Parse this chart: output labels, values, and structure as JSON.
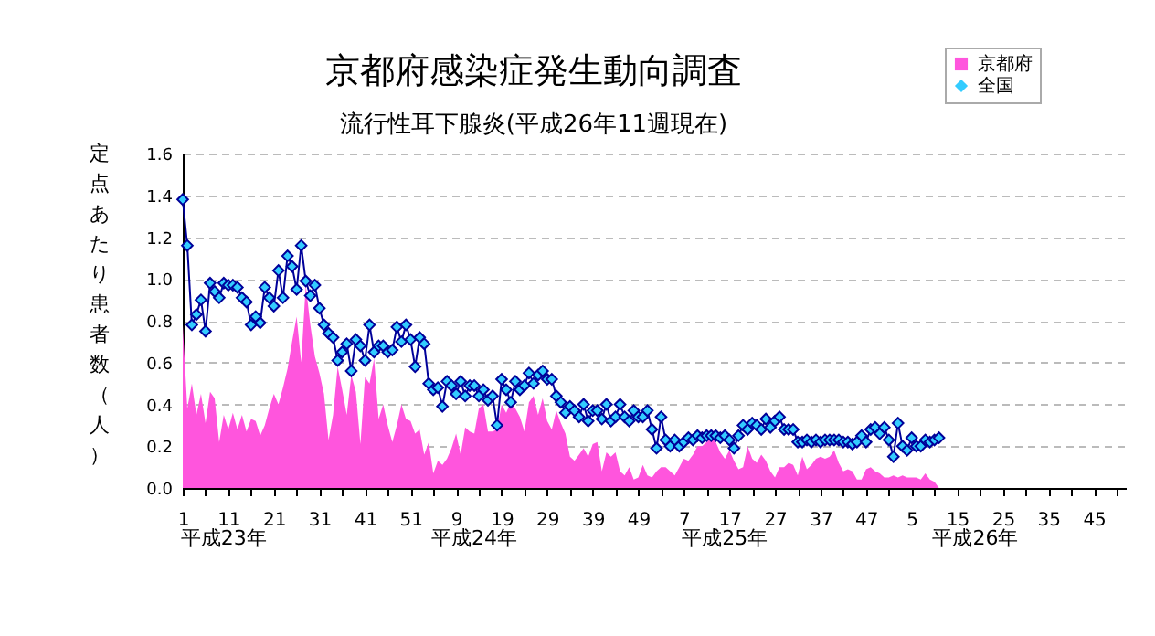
{
  "chart_data": {
    "type": "line",
    "title": "京都府感染症発生動向調査",
    "subtitle": "流行性耳下腺炎(平成26年11週現在)",
    "ylabel": "定点あたり患者数（人）",
    "annotations": [
      "平成23年",
      "平成24年",
      "平成25年",
      "平成26年"
    ],
    "categories": [
      "1",
      null,
      null,
      null,
      null,
      null,
      null,
      null,
      null,
      null,
      "11",
      null,
      null,
      null,
      null,
      null,
      null,
      null,
      null,
      null,
      "21",
      null,
      null,
      null,
      null,
      null,
      null,
      null,
      null,
      null,
      "31",
      null,
      null,
      null,
      null,
      null,
      null,
      null,
      null,
      null,
      "41",
      null,
      null,
      null,
      null,
      null,
      null,
      null,
      null,
      null,
      "51",
      null,
      null,
      null,
      null,
      null,
      null,
      null,
      null,
      null,
      "9",
      null,
      null,
      null,
      null,
      null,
      null,
      null,
      null,
      null,
      "19",
      null,
      null,
      null,
      null,
      null,
      null,
      null,
      null,
      null,
      "29",
      null,
      null,
      null,
      null,
      null,
      null,
      null,
      null,
      null,
      "39",
      null,
      null,
      null,
      null,
      null,
      null,
      null,
      null,
      null,
      "49",
      null,
      null,
      null,
      null,
      null,
      null,
      null,
      null,
      null,
      "7",
      null,
      null,
      null,
      null,
      null,
      null,
      null,
      null,
      null,
      "17",
      null,
      null,
      null,
      null,
      null,
      null,
      null,
      null,
      null,
      "27",
      null,
      null,
      null,
      null,
      null,
      null,
      null,
      null,
      null,
      "37",
      null,
      null,
      null,
      null,
      null,
      null,
      null,
      null,
      null,
      "47",
      null,
      null,
      null,
      null,
      null,
      null,
      null,
      null,
      null,
      "5",
      null,
      null,
      null,
      null,
      null,
      null,
      null,
      null,
      null,
      "15",
      null,
      null,
      null,
      null,
      null,
      null,
      null,
      null,
      null,
      "25",
      null,
      null,
      null,
      null,
      null,
      null,
      null,
      null,
      null,
      "35",
      null,
      null,
      null,
      null,
      null,
      null,
      null,
      null,
      null,
      "45",
      null,
      null,
      null,
      null,
      null,
      null,
      null
    ],
    "series": [
      {
        "name": "京都府",
        "type": "area",
        "color": "#ff55dd",
        "values": [
          0.78,
          0.38,
          0.5,
          0.35,
          0.45,
          0.31,
          0.46,
          0.43,
          0.22,
          0.35,
          0.28,
          0.36,
          0.28,
          0.35,
          0.27,
          0.33,
          0.32,
          0.25,
          0.3,
          0.38,
          0.45,
          0.4,
          0.48,
          0.57,
          0.7,
          0.82,
          0.6,
          0.97,
          0.78,
          0.63,
          0.55,
          0.45,
          0.23,
          0.35,
          0.58,
          0.47,
          0.35,
          0.54,
          0.46,
          0.21,
          0.53,
          0.5,
          0.62,
          0.33,
          0.4,
          0.3,
          0.22,
          0.3,
          0.4,
          0.33,
          0.32,
          0.26,
          0.28,
          0.16,
          0.22,
          0.07,
          0.13,
          0.11,
          0.14,
          0.19,
          0.26,
          0.16,
          0.29,
          0.27,
          0.26,
          0.38,
          0.4,
          0.27,
          0.27,
          0.28,
          0.4,
          0.36,
          0.41,
          0.38,
          0.34,
          0.27,
          0.41,
          0.44,
          0.35,
          0.43,
          0.32,
          0.28,
          0.37,
          0.31,
          0.26,
          0.15,
          0.13,
          0.16,
          0.19,
          0.15,
          0.21,
          0.22,
          0.08,
          0.17,
          0.15,
          0.17,
          0.08,
          0.06,
          0.1,
          0.04,
          0.05,
          0.11,
          0.06,
          0.05,
          0.08,
          0.1,
          0.1,
          0.08,
          0.06,
          0.1,
          0.14,
          0.13,
          0.16,
          0.2,
          0.2,
          0.22,
          0.24,
          0.22,
          0.17,
          0.14,
          0.18,
          0.13,
          0.09,
          0.1,
          0.2,
          0.14,
          0.12,
          0.16,
          0.13,
          0.08,
          0.05,
          0.1,
          0.1,
          0.12,
          0.11,
          0.06,
          0.15,
          0.09,
          0.11,
          0.14,
          0.15,
          0.14,
          0.15,
          0.18,
          0.12,
          0.08,
          0.09,
          0.08,
          0.04,
          0.04,
          0.09,
          0.1,
          0.08,
          0.07,
          0.05,
          0.05,
          0.06,
          0.05,
          0.06,
          0.05,
          0.05,
          0.05,
          0.04,
          0.07,
          0.04,
          0.03,
          0.0,
          null,
          null,
          null,
          null,
          null,
          null,
          null,
          null,
          null,
          null,
          null,
          null,
          null,
          null,
          null,
          null,
          null,
          null,
          null,
          null,
          null,
          null,
          null,
          null,
          null,
          null,
          null,
          null,
          null,
          null,
          null,
          null,
          null,
          null,
          null,
          null,
          null,
          null,
          null,
          null,
          null
        ]
      },
      {
        "name": "全国",
        "type": "line",
        "color": "#33ccff",
        "marker": "diamond",
        "values": [
          1.38,
          1.16,
          0.78,
          0.83,
          0.9,
          0.75,
          0.98,
          0.94,
          0.91,
          0.98,
          0.97,
          0.97,
          0.96,
          0.91,
          0.89,
          0.78,
          0.82,
          0.79,
          0.96,
          0.91,
          0.87,
          1.04,
          0.91,
          1.11,
          1.06,
          0.95,
          1.16,
          0.99,
          0.92,
          0.97,
          0.86,
          0.78,
          0.74,
          0.72,
          0.61,
          0.65,
          0.69,
          0.56,
          0.71,
          0.68,
          0.61,
          0.78,
          0.65,
          0.68,
          0.68,
          0.65,
          0.66,
          0.77,
          0.7,
          0.78,
          0.71,
          0.58,
          0.72,
          0.69,
          0.5,
          0.47,
          0.48,
          0.39,
          0.51,
          0.49,
          0.45,
          0.51,
          0.44,
          0.49,
          0.49,
          0.44,
          0.47,
          0.42,
          0.44,
          0.3,
          0.52,
          0.47,
          0.41,
          0.51,
          0.47,
          0.49,
          0.55,
          0.5,
          0.54,
          0.56,
          0.52,
          0.52,
          0.44,
          0.41,
          0.36,
          0.39,
          0.37,
          0.34,
          0.4,
          0.32,
          0.37,
          0.37,
          0.33,
          0.4,
          0.32,
          0.34,
          0.4,
          0.34,
          0.32,
          0.37,
          0.34,
          0.34,
          0.37,
          0.28,
          0.19,
          0.34,
          0.23,
          0.2,
          0.23,
          0.2,
          0.22,
          0.24,
          0.23,
          0.25,
          0.24,
          0.25,
          0.25,
          0.25,
          0.24,
          0.25,
          0.23,
          0.19,
          0.25,
          0.3,
          0.28,
          0.31,
          0.3,
          0.28,
          0.33,
          0.29,
          0.32,
          0.34,
          0.28,
          0.28,
          0.28,
          0.22,
          0.22,
          0.23,
          0.22,
          0.23,
          0.22,
          0.23,
          0.23,
          0.23,
          0.23,
          0.22,
          0.22,
          0.21,
          0.22,
          0.25,
          0.22,
          0.28,
          0.29,
          0.26,
          0.29,
          0.23,
          0.15,
          0.31,
          0.2,
          0.18,
          0.24,
          0.2,
          0.2,
          0.23,
          0.22,
          0.23,
          0.24,
          null,
          null,
          null,
          null,
          null,
          null,
          null,
          null,
          null,
          null,
          null,
          null,
          null,
          null,
          null,
          null,
          null,
          null,
          null,
          null,
          null,
          null,
          null,
          null,
          null,
          null,
          null,
          null,
          null,
          null,
          null,
          null,
          null,
          null,
          null,
          null,
          null,
          null,
          null,
          null,
          null
        ]
      }
    ],
    "ylim": [
      0,
      1.6
    ],
    "yticks": [
      {
        "value": 0,
        "label": "0.0"
      },
      0.2,
      0.4,
      0.6,
      0.8,
      {
        "value": 1,
        "label": "1.0"
      },
      1.2,
      1.4,
      1.6
    ],
    "grid": "y",
    "legend": "top right",
    "line_style": "solid"
  }
}
